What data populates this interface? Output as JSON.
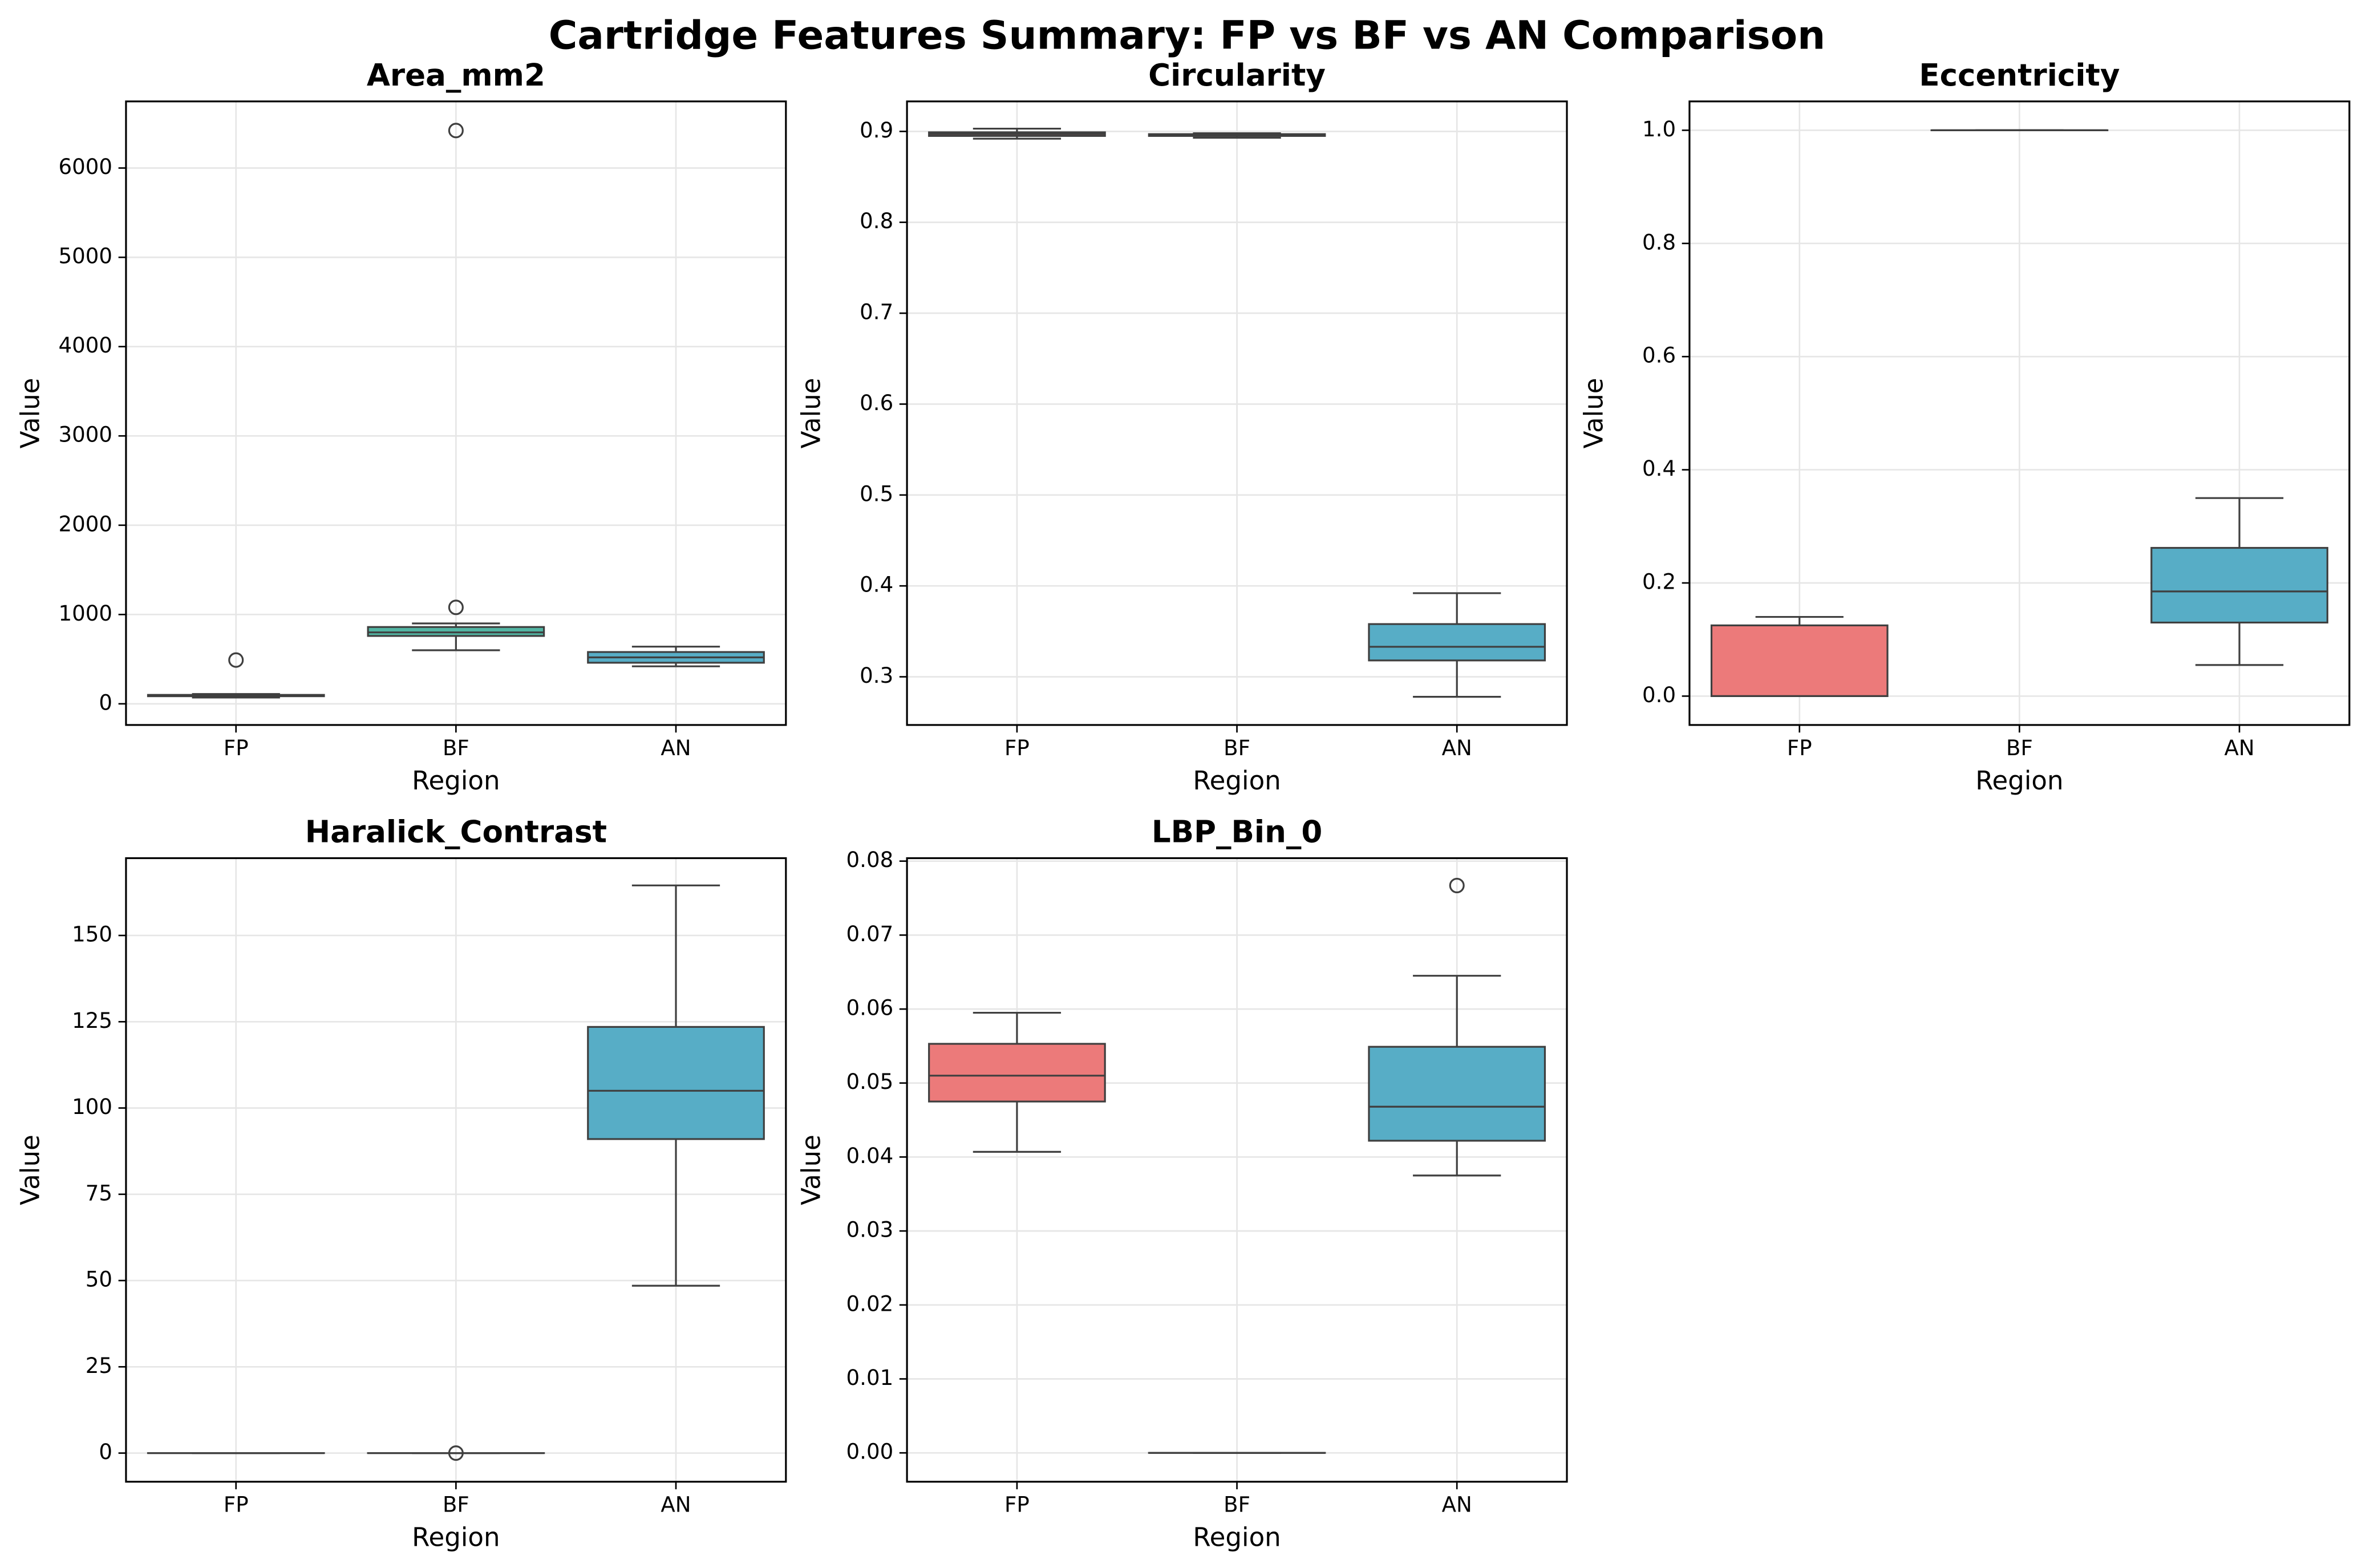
{
  "title": "Cartridge Features Summary: FP vs BF vs AN Comparison",
  "chart_data": [
    {
      "type": "box",
      "title": "Area_mm2",
      "x_label": "Region",
      "y_label": "Value",
      "categories": [
        "FP",
        "BF",
        "AN"
      ],
      "colors": [
        "#ec7a7a",
        "#52b5a3",
        "#57adc6"
      ],
      "ylim": [
        -237,
        6746
      ],
      "yticks": [
        0,
        1000,
        2000,
        3000,
        4000,
        5000,
        6000
      ],
      "grid": true,
      "stats": [
        {
          "whislo": 70,
          "q1": 85,
          "med": 90,
          "q3": 100,
          "whishi": 110,
          "fliers": [
            490
          ]
        },
        {
          "whislo": 600,
          "q1": 760,
          "med": 800,
          "q3": 860,
          "whishi": 900,
          "fliers": [
            1080,
            6420
          ]
        },
        {
          "whislo": 420,
          "q1": 460,
          "med": 520,
          "q3": 580,
          "whishi": 640,
          "fliers": []
        }
      ]
    },
    {
      "type": "box",
      "title": "Circularity",
      "x_label": "Region",
      "y_label": "Value",
      "categories": [
        "FP",
        "BF",
        "AN"
      ],
      "colors": [
        "#ec7a7a",
        "#52b5a3",
        "#57adc6"
      ],
      "ylim": [
        0.247,
        0.933
      ],
      "yticks": [
        0.3,
        0.4,
        0.5,
        0.6,
        0.7,
        0.8,
        0.9
      ],
      "grid": true,
      "stats": [
        {
          "whislo": 0.892,
          "q1": 0.895,
          "med": 0.897,
          "q3": 0.899,
          "whishi": 0.903,
          "fliers": []
        },
        {
          "whislo": 0.893,
          "q1": 0.895,
          "med": 0.896,
          "q3": 0.897,
          "whishi": 0.898,
          "fliers": []
        },
        {
          "whislo": 0.278,
          "q1": 0.318,
          "med": 0.333,
          "q3": 0.358,
          "whishi": 0.392,
          "fliers": []
        }
      ]
    },
    {
      "type": "box",
      "title": "Eccentricity",
      "x_label": "Region",
      "y_label": "Value",
      "categories": [
        "FP",
        "BF",
        "AN"
      ],
      "colors": [
        "#ec7a7a",
        "#52b5a3",
        "#57adc6"
      ],
      "ylim": [
        -0.051,
        1.051
      ],
      "yticks": [
        {
          "value": 0,
          "label": "0.0"
        },
        0.2,
        0.4,
        0.6,
        0.8,
        {
          "value": 1,
          "label": "1.0"
        }
      ],
      "grid": true,
      "stats": [
        {
          "whislo": 0,
          "q1": 0,
          "med": 0,
          "q3": 0.125,
          "whishi": 0.14,
          "fliers": []
        },
        {
          "whislo": 1,
          "q1": 1,
          "med": 1,
          "q3": 1,
          "whishi": 1,
          "fliers": []
        },
        {
          "whislo": 0.055,
          "q1": 0.13,
          "med": 0.185,
          "q3": 0.262,
          "whishi": 0.35,
          "fliers": []
        }
      ]
    },
    {
      "type": "box",
      "title": "Haralick_Contrast",
      "x_label": "Region",
      "y_label": "Value",
      "categories": [
        "FP",
        "BF",
        "AN"
      ],
      "colors": [
        "#ec7a7a",
        "#52b5a3",
        "#57adc6"
      ],
      "ylim": [
        -8.3,
        172.4
      ],
      "yticks": [
        0,
        25,
        50,
        75,
        100,
        125,
        150
      ],
      "grid": true,
      "stats": [
        {
          "whislo": 0,
          "q1": 0,
          "med": 0,
          "q3": 0,
          "whishi": 0,
          "fliers": []
        },
        {
          "whislo": 0,
          "q1": 0,
          "med": 0,
          "q3": 0,
          "whishi": 0,
          "fliers": [
            0
          ]
        },
        {
          "whislo": 48.5,
          "q1": 91,
          "med": 105,
          "q3": 123.5,
          "whishi": 164.5,
          "fliers": []
        }
      ]
    },
    {
      "type": "box",
      "title": "LBP_Bin_0",
      "x_label": "Region",
      "y_label": "Value",
      "categories": [
        "FP",
        "BF",
        "AN"
      ],
      "colors": [
        "#ec7a7a",
        "#52b5a3",
        "#57adc6"
      ],
      "ylim": [
        -0.0039,
        0.0804
      ],
      "yticks": [
        {
          "value": 0,
          "label": "0.00"
        },
        0.01,
        0.02,
        0.03,
        0.04,
        0.05,
        0.06,
        0.07,
        0.08
      ],
      "grid": true,
      "stats": [
        {
          "whislo": 0.0407,
          "q1": 0.0475,
          "med": 0.051,
          "q3": 0.0553,
          "whishi": 0.0595,
          "fliers": []
        },
        {
          "whislo": 0,
          "q1": 0,
          "med": 0,
          "q3": 0,
          "whishi": 0,
          "fliers": []
        },
        {
          "whislo": 0.0375,
          "q1": 0.0422,
          "med": 0.0468,
          "q3": 0.0549,
          "whishi": 0.0645,
          "fliers": [
            0.0767
          ]
        }
      ]
    }
  ]
}
